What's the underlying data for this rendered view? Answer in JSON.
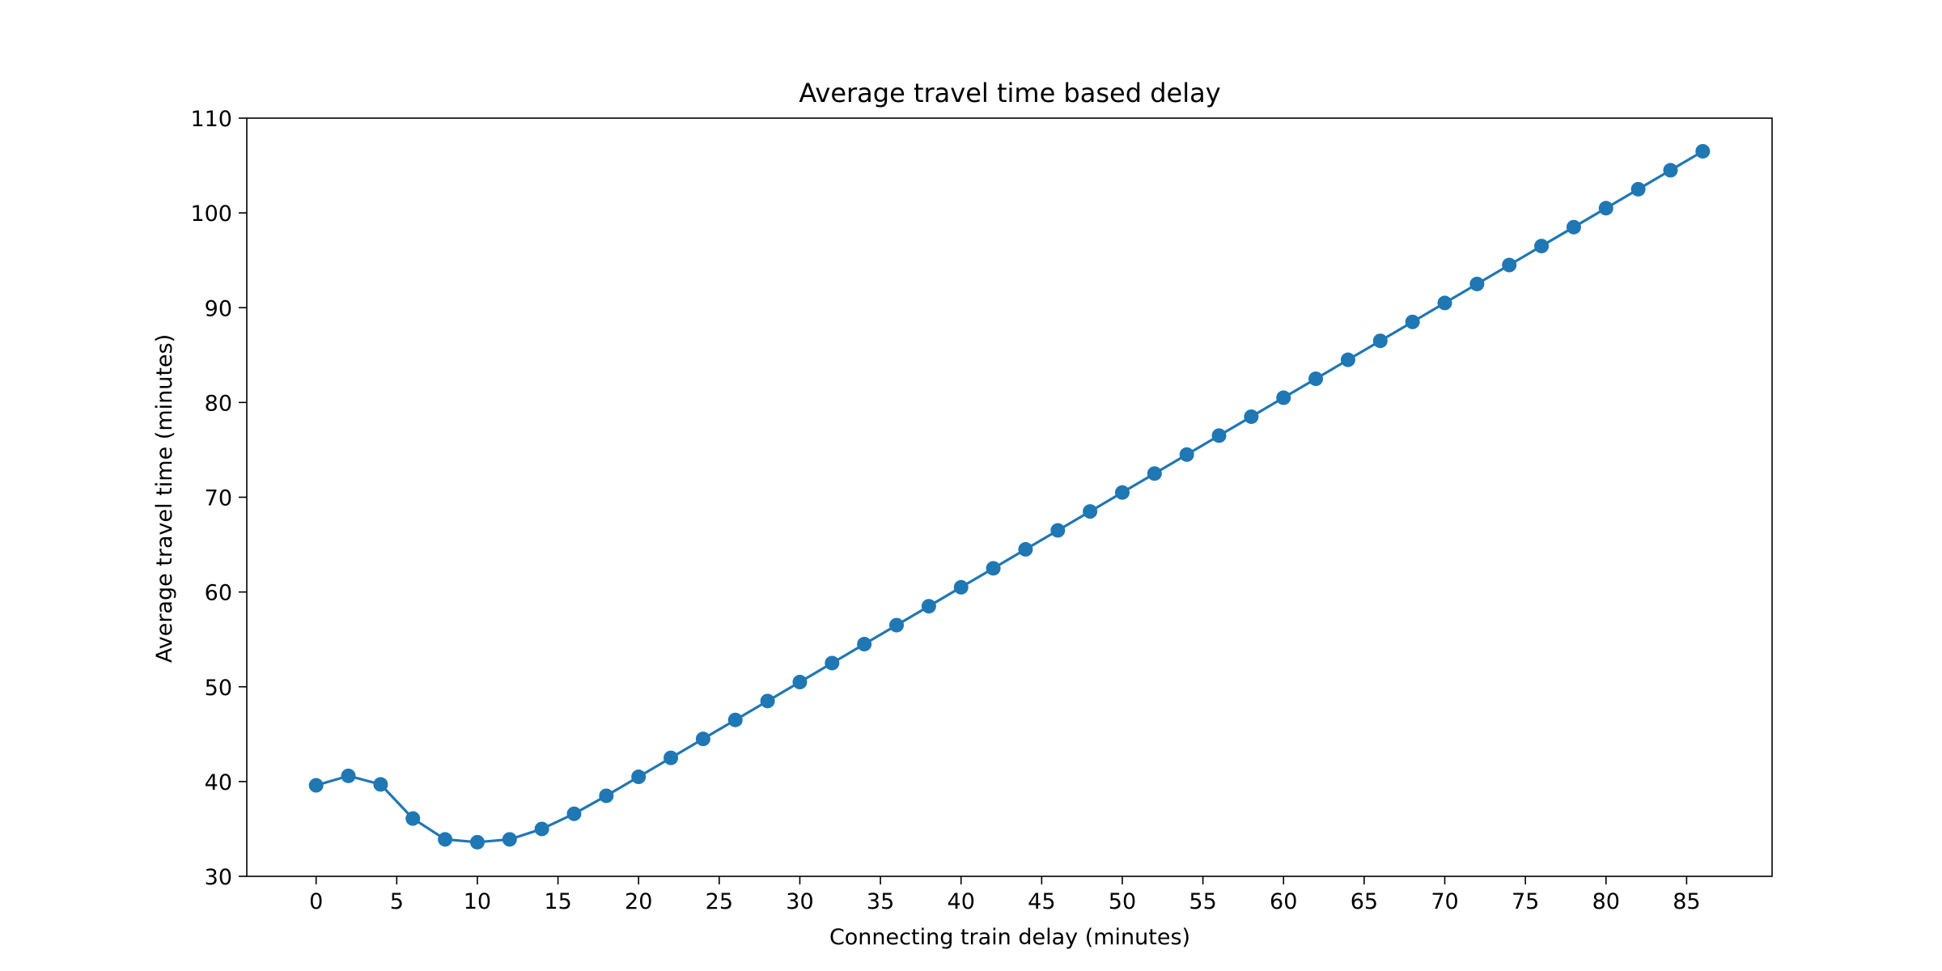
{
  "chart_data": {
    "type": "line",
    "title": "Average travel time based delay",
    "xlabel": "Connecting train delay (minutes)",
    "ylabel": "Average travel time (minutes)",
    "xlim": [
      -4.3,
      90.3
    ],
    "ylim": [
      30,
      110
    ],
    "xticks": [
      0,
      5,
      10,
      15,
      20,
      25,
      30,
      35,
      40,
      45,
      50,
      55,
      60,
      65,
      70,
      75,
      80,
      85
    ],
    "yticks": [
      30,
      40,
      50,
      60,
      70,
      80,
      90,
      100,
      110
    ],
    "grid": false,
    "series": [
      {
        "color": "#1f77b4",
        "marker": "circle",
        "x": [
          0,
          2,
          4,
          6,
          8,
          10,
          12,
          14,
          16,
          18,
          20,
          22,
          24,
          26,
          28,
          30,
          32,
          34,
          36,
          38,
          40,
          42,
          44,
          46,
          48,
          50,
          52,
          54,
          56,
          58,
          60,
          62,
          64,
          66,
          68,
          70,
          72,
          74,
          76,
          78,
          80,
          82,
          84,
          86
        ],
        "y": [
          39.6,
          40.6,
          39.7,
          36.1,
          33.9,
          33.6,
          33.9,
          35.0,
          36.6,
          38.5,
          40.5,
          42.5,
          44.5,
          46.5,
          48.5,
          50.5,
          52.5,
          54.5,
          56.5,
          58.5,
          60.5,
          62.5,
          64.5,
          66.5,
          68.5,
          70.5,
          72.5,
          74.5,
          76.5,
          78.5,
          80.5,
          82.5,
          84.5,
          86.5,
          88.5,
          90.5,
          92.5,
          94.5,
          96.5,
          98.5,
          100.5,
          102.5,
          104.5,
          106.5
        ]
      }
    ]
  }
}
